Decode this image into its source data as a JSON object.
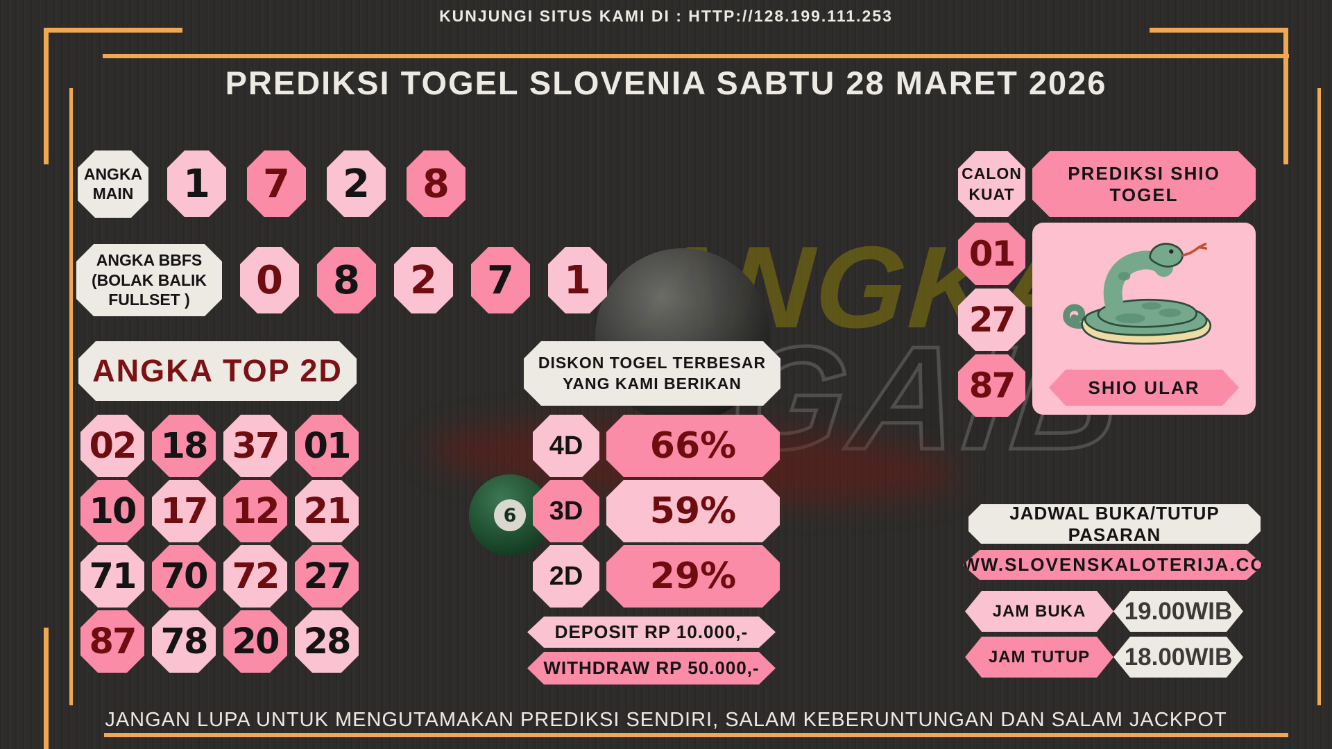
{
  "header": {
    "site_banner": "KUNJUNGI SITUS KAMI DI : HTTP://128.199.111.253",
    "title": "PREDIKSI TOGEL SLOVENIA SABTU 28 MARET 2026"
  },
  "angka_main": {
    "label": "ANGKA MAIN",
    "digits": [
      {
        "value": "1",
        "bg": "light",
        "text": "black"
      },
      {
        "value": "7",
        "bg": "dark",
        "text": "maroon"
      },
      {
        "value": "2",
        "bg": "light",
        "text": "black"
      },
      {
        "value": "8",
        "bg": "dark",
        "text": "maroon"
      }
    ]
  },
  "angka_bbfs": {
    "label_line1": "ANGKA BBFS",
    "label_line2": "(BOLAK BALIK",
    "label_line3": "FULLSET )",
    "digits": [
      {
        "value": "0",
        "bg": "light",
        "text": "maroon"
      },
      {
        "value": "8",
        "bg": "dark",
        "text": "black"
      },
      {
        "value": "2",
        "bg": "light",
        "text": "maroon"
      },
      {
        "value": "7",
        "bg": "dark",
        "text": "black"
      },
      {
        "value": "1",
        "bg": "light",
        "text": "maroon"
      }
    ]
  },
  "angka_top_2d": {
    "label": "ANGKA TOP 2D",
    "cells": [
      {
        "value": "02",
        "bg": "light",
        "text": "maroon"
      },
      {
        "value": "18",
        "bg": "dark",
        "text": "black"
      },
      {
        "value": "37",
        "bg": "light",
        "text": "maroon"
      },
      {
        "value": "01",
        "bg": "dark",
        "text": "black"
      },
      {
        "value": "10",
        "bg": "dark",
        "text": "black"
      },
      {
        "value": "17",
        "bg": "light",
        "text": "maroon"
      },
      {
        "value": "12",
        "bg": "dark",
        "text": "maroon"
      },
      {
        "value": "21",
        "bg": "light",
        "text": "maroon"
      },
      {
        "value": "71",
        "bg": "light",
        "text": "black"
      },
      {
        "value": "70",
        "bg": "dark",
        "text": "black"
      },
      {
        "value": "72",
        "bg": "light",
        "text": "maroon"
      },
      {
        "value": "27",
        "bg": "dark",
        "text": "black"
      },
      {
        "value": "87",
        "bg": "dark",
        "text": "maroon"
      },
      {
        "value": "78",
        "bg": "light",
        "text": "black"
      },
      {
        "value": "20",
        "bg": "dark",
        "text": "black"
      },
      {
        "value": "28",
        "bg": "light",
        "text": "black"
      }
    ]
  },
  "diskon": {
    "title_line1": "DISKON TOGEL TERBESAR",
    "title_line2": "YANG KAMI BERIKAN",
    "rows": [
      {
        "label": "4D",
        "percent": "66%",
        "label_bg": "light",
        "value_bg": "dark"
      },
      {
        "label": "3D",
        "percent": "59%",
        "label_bg": "dark",
        "value_bg": "light"
      },
      {
        "label": "2D",
        "percent": "29%",
        "label_bg": "light",
        "value_bg": "dark"
      }
    ],
    "deposit": "DEPOSIT RP 10.000,-",
    "withdraw": "WITHDRAW RP 50.000,-"
  },
  "shio": {
    "calon_kuat_line1": "CALON",
    "calon_kuat_line2": "KUAT",
    "header": "PREDIKSI SHIO TOGEL",
    "numbers": [
      {
        "value": "01",
        "bg": "dark",
        "text": "maroon"
      },
      {
        "value": "27",
        "bg": "light",
        "text": "maroon"
      },
      {
        "value": "87",
        "bg": "dark",
        "text": "maroon"
      }
    ],
    "animal": "SHIO ULAR",
    "animal_icon": "snake-illustration"
  },
  "jadwal": {
    "title": "JADWAL BUKA/TUTUP PASARAN",
    "website": "WWW.SLOVENSKALOTERIJA.COM",
    "rows": [
      {
        "label": "JAM BUKA",
        "value": "19.00WIB",
        "label_bg": "light"
      },
      {
        "label": "JAM TUTUP",
        "value": "18.00WIB",
        "label_bg": "dark"
      }
    ]
  },
  "footer": {
    "text": "JANGAN LUPA UNTUK MENGUTAMAKAN PREDIKSI SENDIRI, SALAM KEBERUNTUNGAN DAN SALAM JACKPOT"
  },
  "watermark": {
    "line1": "ANGKA",
    "line2": "GAIB",
    "ball_number": "6"
  },
  "colors": {
    "background": "#2d2c2a",
    "accent_orange": "#F2A852",
    "cream": "#EDE9E3",
    "pink_light": "#FBC2D1",
    "pink_dark": "#FA8CA7",
    "maroon_text": "#6E0D10"
  }
}
